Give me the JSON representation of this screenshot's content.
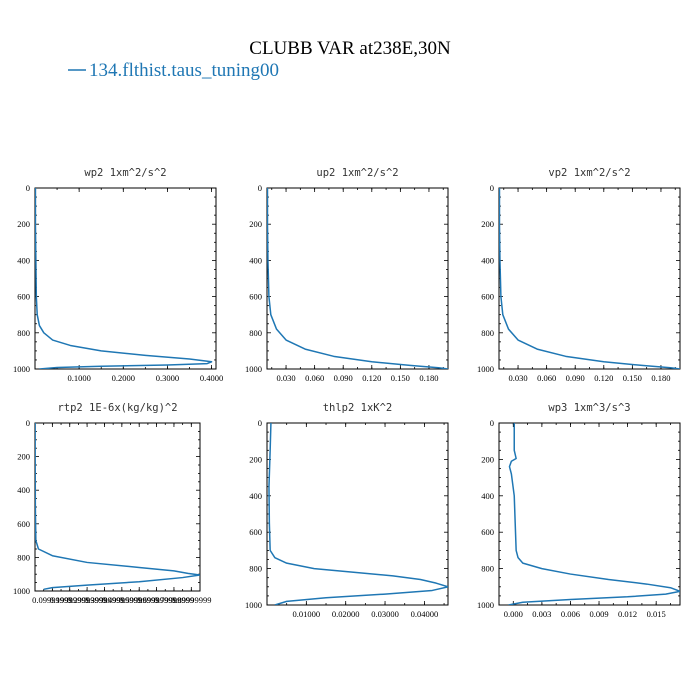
{
  "figure": {
    "title": "CLUBB VAR at238E,30N",
    "legend": {
      "label": "134.flthist.taus_tuning00",
      "color": "#1f77b4"
    }
  },
  "chart_data": [
    {
      "type": "line",
      "title": "wp2  1xm^2/s^2",
      "xticks": [
        "0.1000",
        "0.2000",
        "0.3000",
        "0.4000"
      ],
      "xtick_values": [
        0.1,
        0.2,
        0.3,
        0.4
      ],
      "xlim": [
        0,
        0.41
      ],
      "yticks": [
        "0",
        "200",
        "400",
        "600",
        "800",
        "1000"
      ],
      "ylim": [
        1000,
        0
      ],
      "series": [
        {
          "color": "#1f77b4",
          "x": [
            0.001,
            0.001,
            0.002,
            0.003,
            0.005,
            0.01,
            0.02,
            0.04,
            0.08,
            0.15,
            0.25,
            0.35,
            0.4,
            0.39,
            0.3,
            0.15,
            0.05,
            0.01
          ],
          "y": [
            0,
            200,
            400,
            600,
            700,
            760,
            800,
            840,
            870,
            900,
            925,
            945,
            960,
            970,
            978,
            985,
            992,
            1000
          ]
        }
      ]
    },
    {
      "type": "line",
      "title": "up2  1xm^2/s^2",
      "xticks": [
        "0.030",
        "0.060",
        "0.090",
        "0.120",
        "0.150",
        "0.180"
      ],
      "xtick_values": [
        0.03,
        0.06,
        0.09,
        0.12,
        0.15,
        0.18
      ],
      "xlim": [
        0.01,
        0.2
      ],
      "yticks": [
        "0",
        "200",
        "400",
        "600",
        "800",
        "1000"
      ],
      "ylim": [
        1000,
        0
      ],
      "series": [
        {
          "color": "#1f77b4",
          "x": [
            0.0105,
            0.0105,
            0.011,
            0.012,
            0.014,
            0.02,
            0.03,
            0.05,
            0.08,
            0.12,
            0.16,
            0.19,
            0.2
          ],
          "y": [
            0,
            200,
            400,
            600,
            700,
            780,
            840,
            890,
            930,
            960,
            980,
            993,
            1000
          ]
        }
      ]
    },
    {
      "type": "line",
      "title": "vp2  1xm^2/s^2",
      "xticks": [
        "0.030",
        "0.060",
        "0.090",
        "0.120",
        "0.150",
        "0.180"
      ],
      "xtick_values": [
        0.03,
        0.06,
        0.09,
        0.12,
        0.15,
        0.18
      ],
      "xlim": [
        0.01,
        0.2
      ],
      "yticks": [
        "0",
        "200",
        "400",
        "600",
        "800",
        "1000"
      ],
      "ylim": [
        1000,
        0
      ],
      "series": [
        {
          "color": "#1f77b4",
          "x": [
            0.0105,
            0.0105,
            0.011,
            0.012,
            0.014,
            0.02,
            0.03,
            0.05,
            0.08,
            0.12,
            0.16,
            0.19,
            0.2
          ],
          "y": [
            0,
            200,
            400,
            600,
            700,
            780,
            840,
            890,
            930,
            960,
            980,
            993,
            1000
          ]
        }
      ]
    },
    {
      "type": "line",
      "title": "rtp2  1E-6x(kg/kg)^2",
      "xticks": [
        "0.09999999",
        "0.19999999",
        "0.29999999",
        "0.39999999",
        "0.49999999",
        "0.59999999",
        "0.69999999",
        "0.79999999",
        "0.89999999"
      ],
      "xtick_values": [
        0.1,
        0.2,
        0.3,
        0.4,
        0.5,
        0.6,
        0.7,
        0.8,
        0.9
      ],
      "xlim": [
        0,
        0.95
      ],
      "yticks": [
        "0",
        "200",
        "400",
        "600",
        "800",
        "1000"
      ],
      "ylim": [
        1000,
        0
      ],
      "series": [
        {
          "color": "#1f77b4",
          "x": [
            0.001,
            0.001,
            0.002,
            0.005,
            0.02,
            0.1,
            0.3,
            0.6,
            0.8,
            0.88,
            0.95,
            0.85,
            0.6,
            0.3,
            0.1,
            0.05
          ],
          "y": [
            0,
            200,
            500,
            700,
            750,
            790,
            830,
            860,
            880,
            895,
            905,
            920,
            945,
            965,
            980,
            990
          ]
        }
      ]
    },
    {
      "type": "line",
      "title": "thlp2  1xK^2",
      "xticks": [
        "0.01000",
        "0.02000",
        "0.03000",
        "0.04000"
      ],
      "xtick_values": [
        0.01,
        0.02,
        0.03,
        0.04
      ],
      "xlim": [
        0,
        0.046
      ],
      "yticks": [
        "0",
        "200",
        "400",
        "600",
        "800",
        "1000"
      ],
      "ylim": [
        1000,
        0
      ],
      "series": [
        {
          "color": "#1f77b4",
          "x": [
            0.001,
            0.0008,
            0.0005,
            0.0006,
            0.0008,
            0.002,
            0.005,
            0.012,
            0.022,
            0.032,
            0.039,
            0.043,
            0.046,
            0.042,
            0.03,
            0.015,
            0.005,
            0.002
          ],
          "y": [
            0,
            150,
            350,
            550,
            700,
            740,
            770,
            800,
            820,
            840,
            860,
            880,
            900,
            920,
            940,
            960,
            980,
            1000
          ]
        }
      ]
    },
    {
      "type": "line",
      "title": "wp3  1xm^3/s^3",
      "xticks": [
        "0.000",
        "0.003",
        "0.006",
        "0.009",
        "0.012",
        "0.015"
      ],
      "xtick_values": [
        0,
        0.003,
        0.006,
        0.009,
        0.012,
        0.015
      ],
      "xlim": [
        -0.0015,
        0.0175
      ],
      "yticks": [
        "0",
        "200",
        "400",
        "600",
        "800",
        "1000"
      ],
      "ylim": [
        1000,
        0
      ],
      "series": [
        {
          "color": "#1f77b4",
          "x": [
            0.0001,
            0.0001,
            0.0003,
            -0.0002,
            -0.0004,
            -0.0002,
            0.0001,
            0.0002,
            0.0003,
            0.0005,
            0.001,
            0.003,
            0.006,
            0.01,
            0.014,
            0.0165,
            0.0175,
            0.016,
            0.012,
            0.006,
            0.001,
            -0.0005
          ],
          "y": [
            0,
            150,
            195,
            210,
            240,
            280,
            400,
            550,
            700,
            740,
            770,
            800,
            830,
            860,
            885,
            905,
            925,
            940,
            955,
            970,
            985,
            1000
          ]
        }
      ]
    }
  ]
}
